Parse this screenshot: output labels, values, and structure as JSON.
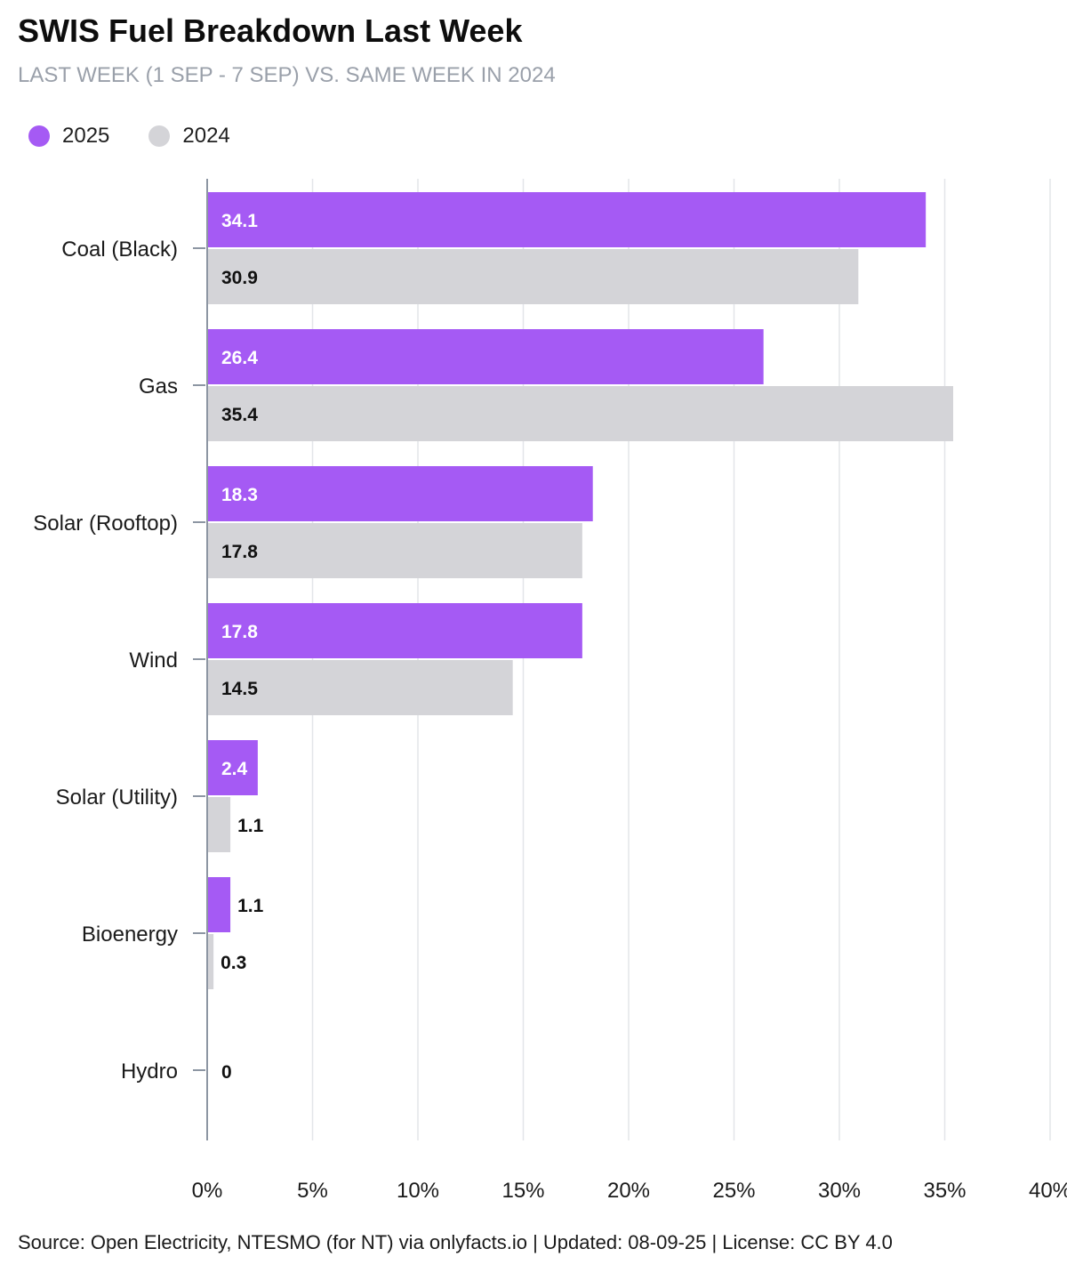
{
  "header": {
    "title": "SWIS Fuel Breakdown Last Week",
    "subtitle": "LAST WEEK (1 SEP - 7 SEP) VS. SAME WEEK IN 2024"
  },
  "legend": {
    "items": [
      {
        "label": "2025",
        "color": "#a55af4"
      },
      {
        "label": "2024",
        "color": "#d4d4d8"
      }
    ]
  },
  "footer": {
    "source": "Source: Open Electricity, NTESMO (for NT) via onlyfacts.io | Updated: 08-09-25 | License: CC BY 4.0"
  },
  "chart_data": {
    "type": "bar",
    "orientation": "horizontal",
    "categories": [
      "Coal (Black)",
      "Gas",
      "Solar (Rooftop)",
      "Wind",
      "Solar (Utility)",
      "Bioenergy",
      "Hydro"
    ],
    "series": [
      {
        "name": "2025",
        "color": "#a55af4",
        "label_color": "#ffffff",
        "values": [
          34.1,
          26.4,
          18.3,
          17.8,
          2.4,
          1.1,
          0
        ]
      },
      {
        "name": "2024",
        "color": "#d4d4d8",
        "label_color": "#111111",
        "values": [
          30.9,
          35.4,
          17.8,
          14.5,
          1.1,
          0.3,
          0
        ]
      }
    ],
    "x_ticks": [
      "0%",
      "5%",
      "10%",
      "15%",
      "20%",
      "25%",
      "30%",
      "35%",
      "40%"
    ],
    "xlim": [
      0,
      40
    ],
    "grid": true,
    "legend_position": "top-left"
  }
}
